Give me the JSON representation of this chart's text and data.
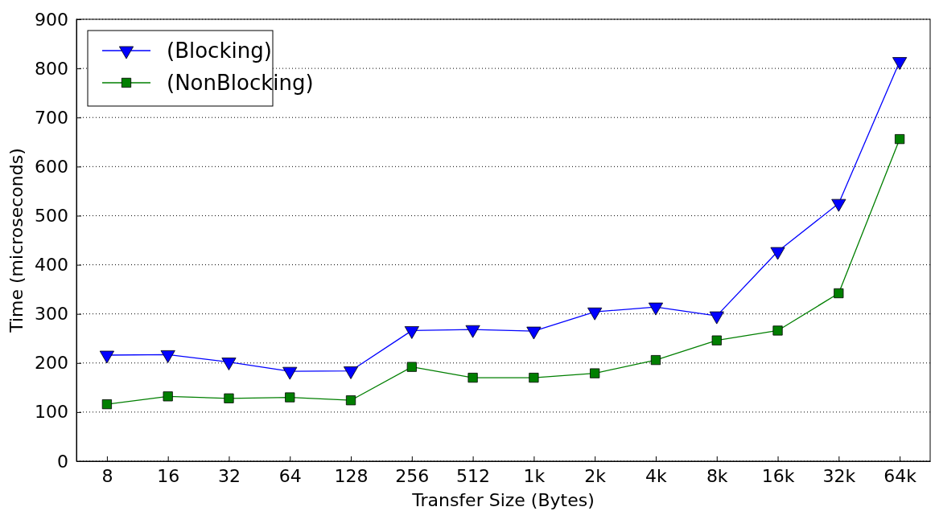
{
  "chart_data": {
    "type": "line",
    "xlabel": "Transfer Size (Bytes)",
    "ylabel": "Time (microseconds)",
    "categories": [
      "8",
      "16",
      "32",
      "64",
      "128",
      "256",
      "512",
      "1k",
      "2k",
      "4k",
      "8k",
      "16k",
      "32k",
      "64k"
    ],
    "ylim": [
      0,
      900
    ],
    "yticks": [
      0,
      100,
      200,
      300,
      400,
      500,
      600,
      700,
      800,
      900
    ],
    "grid": "y",
    "legend": "top left",
    "line_style": "solid",
    "series": [
      {
        "name": "(Blocking)",
        "color": "#0000ff",
        "marker": "triangle",
        "values": [
          216,
          217,
          202,
          183,
          184,
          266,
          268,
          265,
          304,
          314,
          296,
          427,
          525,
          814
        ]
      },
      {
        "name": "(NonBlocking)",
        "color": "#007f00",
        "marker": "square",
        "values": [
          116,
          132,
          128,
          130,
          124,
          192,
          170,
          170,
          179,
          206,
          246,
          266,
          342,
          656
        ]
      }
    ]
  }
}
